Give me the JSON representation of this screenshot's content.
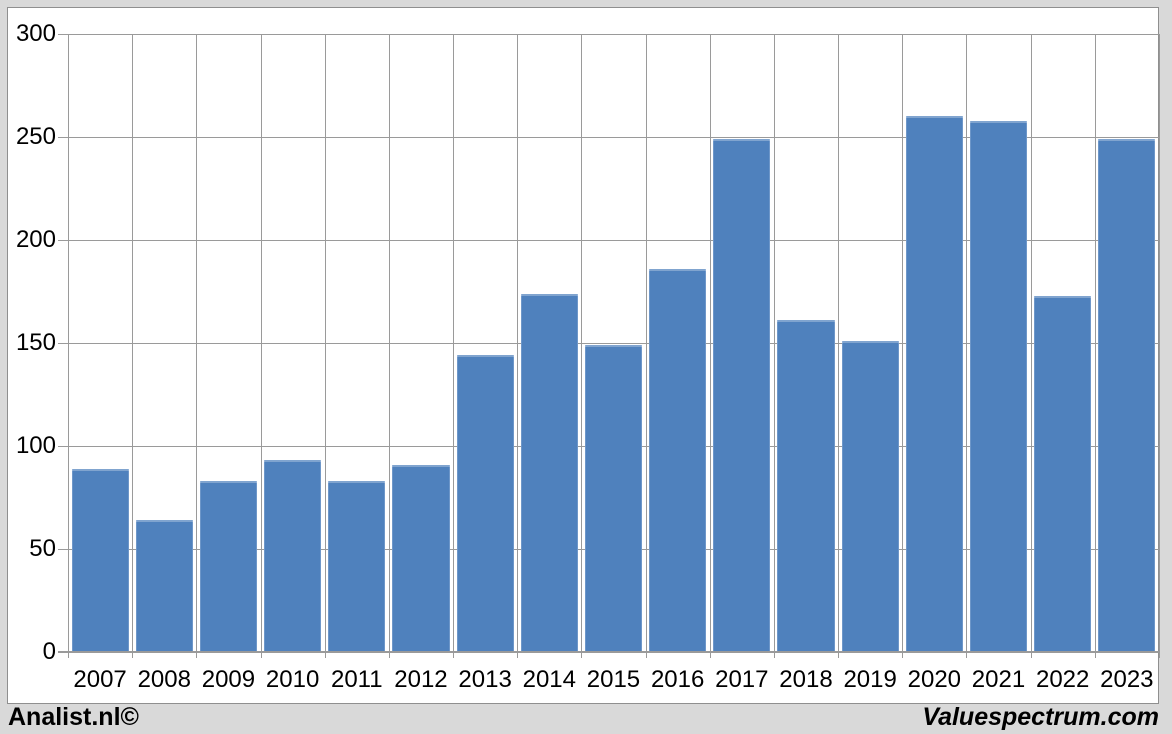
{
  "chart_data": {
    "type": "bar",
    "title": "",
    "categories": [
      "2007",
      "2008",
      "2009",
      "2010",
      "2011",
      "2012",
      "2013",
      "2014",
      "2015",
      "2016",
      "2017",
      "2018",
      "2019",
      "2020",
      "2021",
      "2022",
      "2023"
    ],
    "values": [
      89,
      64,
      83,
      93,
      83,
      91,
      144,
      174,
      149,
      186,
      249,
      161,
      151,
      260,
      258,
      173,
      249
    ],
    "ylim": [
      0,
      300
    ],
    "yticks": [
      0,
      50,
      100,
      150,
      200,
      250,
      300
    ],
    "ytick_labels": [
      "0",
      "50",
      "100",
      "150",
      "200",
      "250",
      "300"
    ],
    "grid": true,
    "legend_position": "none",
    "xlabel": "",
    "ylabel": "",
    "bar_color": "#4f81bd",
    "gridline_color": "#9a9a9a",
    "plot_background": "#ffffff",
    "outer_background": "#d9d9d9",
    "axis_text_color": "#000000"
  },
  "footer": {
    "left_text": "Analist.nl©",
    "right_text": "Valuespectrum.com"
  }
}
